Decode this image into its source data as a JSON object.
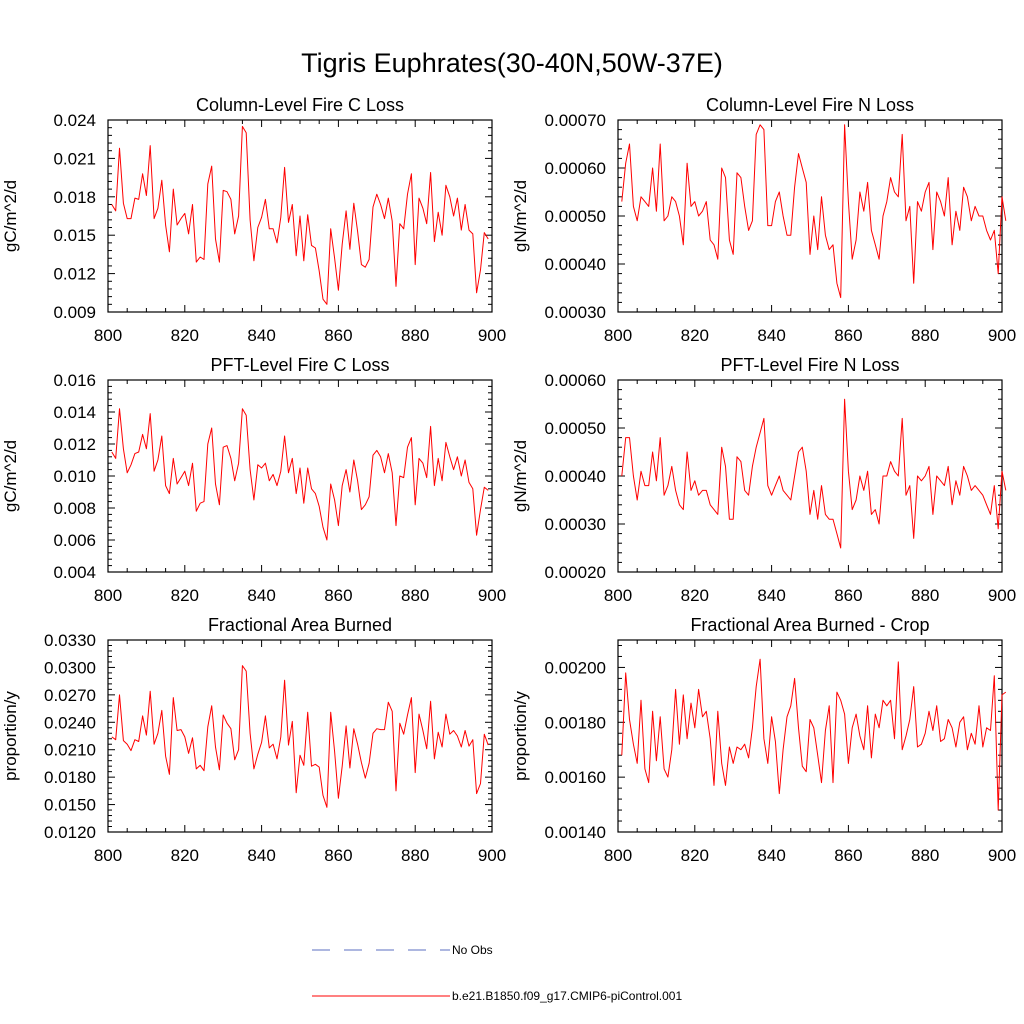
{
  "figure_title": "Tigris Euphrates(30-40N,50W-37E)",
  "legend": {
    "items": [
      {
        "label": "No Obs",
        "style": "dashed",
        "color": "#5b6fc2"
      },
      {
        "label": "b.e21.B1850.f09_g17.CMIP6-piControl.001",
        "style": "solid",
        "color": "#ff0000"
      }
    ]
  },
  "chart_data": [
    {
      "type": "line",
      "title": "Column-Level Fire C Loss",
      "ylabel": "gC/m^2/d",
      "xlabel": "",
      "xlim": [
        800,
        900
      ],
      "xticks": [
        800,
        820,
        840,
        860,
        880,
        900
      ],
      "ylim": [
        0.009,
        0.024
      ],
      "yticks": [
        "0.009",
        "0.012",
        "0.015",
        "0.018",
        "0.021",
        "0.024"
      ],
      "x_start": 801,
      "series": [
        {
          "name": "b.e21.B1850.f09_g17.CMIP6-piControl.001",
          "color": "#ff0000",
          "values": [
            0.0174,
            0.0169,
            0.0218,
            0.0175,
            0.0163,
            0.0163,
            0.0179,
            0.0178,
            0.0198,
            0.0181,
            0.022,
            0.0163,
            0.0171,
            0.0193,
            0.0158,
            0.0137,
            0.0186,
            0.0158,
            0.0163,
            0.0167,
            0.0151,
            0.0174,
            0.0129,
            0.0133,
            0.0131,
            0.019,
            0.0204,
            0.0147,
            0.0129,
            0.0185,
            0.0184,
            0.0178,
            0.0151,
            0.0165,
            0.0235,
            0.023,
            0.0162,
            0.013,
            0.0156,
            0.0164,
            0.0178,
            0.0155,
            0.0155,
            0.0144,
            0.0164,
            0.0203,
            0.016,
            0.0174,
            0.0134,
            0.0165,
            0.013,
            0.0166,
            0.0142,
            0.014,
            0.0122,
            0.01,
            0.0096,
            0.0155,
            0.0132,
            0.0107,
            0.0143,
            0.0169,
            0.0139,
            0.0175,
            0.0153,
            0.0127,
            0.0125,
            0.0131,
            0.0172,
            0.0182,
            0.0174,
            0.0163,
            0.0179,
            0.0161,
            0.011,
            0.0159,
            0.0155,
            0.0182,
            0.0198,
            0.0127,
            0.0179,
            0.0171,
            0.0159,
            0.0199,
            0.0145,
            0.0168,
            0.015,
            0.0189,
            0.018,
            0.0165,
            0.0179,
            0.0154,
            0.0174,
            0.0154,
            0.0151,
            0.0105,
            0.0123,
            0.0152,
            0.0147
          ]
        }
      ]
    },
    {
      "type": "line",
      "title": "Column-Level Fire N Loss",
      "ylabel": "gN/m^2/d",
      "xlabel": "",
      "xlim": [
        800,
        900
      ],
      "xticks": [
        800,
        820,
        840,
        860,
        880,
        900
      ],
      "ylim": [
        0.0003,
        0.0007
      ],
      "yticks": [
        "0.00030",
        "0.00040",
        "0.00050",
        "0.00060",
        "0.00070"
      ],
      "x_start": 801,
      "series": [
        {
          "name": "b.e21.B1850.f09_g17.CMIP6-piControl.001",
          "color": "#ff0000",
          "values": [
            0.00053,
            0.00061,
            0.00065,
            0.00052,
            0.00049,
            0.00054,
            0.00053,
            0.00052,
            0.0006,
            0.00051,
            0.00065,
            0.00049,
            0.0005,
            0.00054,
            0.00053,
            0.0005,
            0.00044,
            0.00061,
            0.00052,
            0.00053,
            0.0005,
            0.00051,
            0.00053,
            0.00045,
            0.00044,
            0.00041,
            0.0006,
            0.00058,
            0.00045,
            0.00042,
            0.00059,
            0.00058,
            0.00052,
            0.00047,
            0.00049,
            0.00067,
            0.00069,
            0.00068,
            0.00048,
            0.00048,
            0.00053,
            0.00055,
            0.0005,
            0.00046,
            0.00046,
            0.00056,
            0.00063,
            0.0006,
            0.00057,
            0.00042,
            0.0005,
            0.00043,
            0.00054,
            0.00046,
            0.00043,
            0.00044,
            0.00036,
            0.00033,
            0.00069,
            0.00053,
            0.00041,
            0.00045,
            0.00055,
            0.00051,
            0.00057,
            0.00047,
            0.00044,
            0.00041,
            0.0005,
            0.00053,
            0.00058,
            0.00055,
            0.00054,
            0.00067,
            0.00049,
            0.00052,
            0.00036,
            0.00053,
            0.00051,
            0.00055,
            0.00057,
            0.00043,
            0.00055,
            0.00053,
            0.0005,
            0.00058,
            0.00044,
            0.00051,
            0.00047,
            0.00056,
            0.00054,
            0.00049,
            0.00052,
            0.0005,
            0.0005,
            0.00047,
            0.00045,
            0.00047,
            0.00038,
            0.00054,
            0.00049
          ]
        }
      ]
    },
    {
      "type": "line",
      "title": "PFT-Level Fire C Loss",
      "ylabel": "gC/m^2/d",
      "xlabel": "",
      "xlim": [
        800,
        900
      ],
      "xticks": [
        800,
        820,
        840,
        860,
        880,
        900
      ],
      "ylim": [
        0.004,
        0.016
      ],
      "yticks": [
        "0.004",
        "0.006",
        "0.008",
        "0.010",
        "0.012",
        "0.014",
        "0.016"
      ],
      "x_start": 801,
      "series": [
        {
          "name": "b.e21.B1850.f09_g17.CMIP6-piControl.001",
          "color": "#ff0000",
          "values": [
            0.0115,
            0.0111,
            0.0142,
            0.0117,
            0.0102,
            0.0107,
            0.0114,
            0.0115,
            0.0126,
            0.0117,
            0.0139,
            0.0103,
            0.011,
            0.0125,
            0.0094,
            0.0089,
            0.0111,
            0.0095,
            0.0099,
            0.0103,
            0.0094,
            0.0108,
            0.0078,
            0.0083,
            0.0084,
            0.012,
            0.013,
            0.0095,
            0.0082,
            0.0118,
            0.0119,
            0.0111,
            0.0097,
            0.0108,
            0.0142,
            0.0138,
            0.0104,
            0.0085,
            0.0107,
            0.0105,
            0.0108,
            0.0097,
            0.0101,
            0.0094,
            0.0103,
            0.0125,
            0.0102,
            0.0111,
            0.0089,
            0.0105,
            0.0083,
            0.0105,
            0.0092,
            0.0089,
            0.0081,
            0.0068,
            0.006,
            0.0095,
            0.0085,
            0.0069,
            0.0094,
            0.0104,
            0.009,
            0.011,
            0.0097,
            0.0079,
            0.0082,
            0.0087,
            0.0113,
            0.0116,
            0.0112,
            0.0102,
            0.0114,
            0.0102,
            0.0069,
            0.01,
            0.0099,
            0.0118,
            0.0124,
            0.0082,
            0.0111,
            0.0108,
            0.0099,
            0.0131,
            0.0094,
            0.0111,
            0.0097,
            0.0121,
            0.0112,
            0.0104,
            0.0112,
            0.01,
            0.011,
            0.0096,
            0.0092,
            0.0063,
            0.0079,
            0.0093,
            0.0091
          ]
        }
      ]
    },
    {
      "type": "line",
      "title": "PFT-Level Fire N Loss",
      "ylabel": "gN/m^2/d",
      "xlabel": "",
      "xlim": [
        800,
        900
      ],
      "xticks": [
        800,
        820,
        840,
        860,
        880,
        900
      ],
      "ylim": [
        0.0002,
        0.0006
      ],
      "yticks": [
        "0.00020",
        "0.00030",
        "0.00040",
        "0.00050",
        "0.00060"
      ],
      "x_start": 801,
      "series": [
        {
          "name": "b.e21.B1850.f09_g17.CMIP6-piControl.001",
          "color": "#ff0000",
          "values": [
            0.0004,
            0.00048,
            0.00048,
            0.0004,
            0.00035,
            0.00041,
            0.00038,
            0.00038,
            0.00045,
            0.00039,
            0.00048,
            0.00036,
            0.00038,
            0.00042,
            0.00037,
            0.00034,
            0.00033,
            0.00045,
            0.00037,
            0.00039,
            0.00036,
            0.00037,
            0.00037,
            0.00034,
            0.00033,
            0.00032,
            0.00046,
            0.00042,
            0.00031,
            0.00031,
            0.00044,
            0.00043,
            0.00037,
            0.00036,
            0.00042,
            0.00046,
            0.00049,
            0.00052,
            0.00038,
            0.00036,
            0.00038,
            0.0004,
            0.00037,
            0.00036,
            0.00035,
            0.0004,
            0.00045,
            0.00046,
            0.00041,
            0.00032,
            0.00037,
            0.00031,
            0.00038,
            0.00032,
            0.00031,
            0.00031,
            0.00028,
            0.00025,
            0.00056,
            0.00041,
            0.00033,
            0.00035,
            0.0004,
            0.00037,
            0.00041,
            0.00032,
            0.00033,
            0.0003,
            0.0004,
            0.0004,
            0.00043,
            0.00041,
            0.0004,
            0.00052,
            0.00036,
            0.00038,
            0.00027,
            0.0004,
            0.00039,
            0.0004,
            0.00042,
            0.00032,
            0.0004,
            0.00039,
            0.00038,
            0.00042,
            0.00034,
            0.00039,
            0.00036,
            0.00042,
            0.0004,
            0.00037,
            0.00038,
            0.00037,
            0.00036,
            0.00034,
            0.00032,
            0.00038,
            0.00029,
            0.00041,
            0.00037
          ]
        }
      ]
    },
    {
      "type": "line",
      "title": "Fractional Area Burned",
      "ylabel": "proportion/y",
      "xlabel": "",
      "xlim": [
        800,
        900
      ],
      "xticks": [
        800,
        820,
        840,
        860,
        880,
        900
      ],
      "ylim": [
        0.012,
        0.033
      ],
      "yticks": [
        "0.0120",
        "0.0150",
        "0.0180",
        "0.0210",
        "0.0240",
        "0.0270",
        "0.0300",
        "0.0330"
      ],
      "x_start": 801,
      "series": [
        {
          "name": "b.e21.B1850.f09_g17.CMIP6-piControl.001",
          "color": "#ff0000",
          "values": [
            0.0224,
            0.0221,
            0.027,
            0.022,
            0.0216,
            0.0209,
            0.0221,
            0.0219,
            0.0247,
            0.0226,
            0.0274,
            0.0216,
            0.0228,
            0.0253,
            0.0203,
            0.0183,
            0.0267,
            0.0231,
            0.0232,
            0.0224,
            0.0206,
            0.0223,
            0.0189,
            0.0193,
            0.0187,
            0.0235,
            0.0258,
            0.0213,
            0.0188,
            0.0248,
            0.0239,
            0.0233,
            0.0199,
            0.021,
            0.0302,
            0.0296,
            0.0228,
            0.0189,
            0.0205,
            0.0218,
            0.0247,
            0.0212,
            0.0216,
            0.02,
            0.0224,
            0.0286,
            0.0215,
            0.0241,
            0.0163,
            0.0204,
            0.0193,
            0.0251,
            0.0192,
            0.0194,
            0.0191,
            0.016,
            0.0147,
            0.0251,
            0.0208,
            0.0157,
            0.0192,
            0.0236,
            0.019,
            0.0233,
            0.0216,
            0.0196,
            0.0179,
            0.0195,
            0.0228,
            0.0233,
            0.0232,
            0.0232,
            0.0262,
            0.0252,
            0.0165,
            0.0239,
            0.0227,
            0.0248,
            0.0267,
            0.0185,
            0.0249,
            0.0231,
            0.0211,
            0.0263,
            0.02,
            0.0229,
            0.0213,
            0.0249,
            0.0227,
            0.0231,
            0.0225,
            0.0213,
            0.0231,
            0.0214,
            0.0221,
            0.0162,
            0.0173,
            0.0227,
            0.0215
          ]
        }
      ]
    },
    {
      "type": "line",
      "title": "Fractional Area Burned - Crop",
      "ylabel": "proportion/y",
      "xlabel": "",
      "xlim": [
        800,
        900
      ],
      "xticks": [
        800,
        820,
        840,
        860,
        880,
        900
      ],
      "ylim": [
        0.0014,
        0.0021
      ],
      "yticks": [
        "0.00140",
        "0.00160",
        "0.00180",
        "0.00200"
      ],
      "x_start": 801,
      "series": [
        {
          "name": "b.e21.B1850.f09_g17.CMIP6-piControl.001",
          "color": "#ff0000",
          "values": [
            0.00168,
            0.00198,
            0.00181,
            0.00172,
            0.00165,
            0.00188,
            0.00163,
            0.00158,
            0.00184,
            0.00166,
            0.00182,
            0.00163,
            0.0016,
            0.0017,
            0.00192,
            0.00172,
            0.0019,
            0.00174,
            0.00187,
            0.00178,
            0.00192,
            0.00182,
            0.00184,
            0.00174,
            0.00157,
            0.00184,
            0.00165,
            0.00157,
            0.00171,
            0.00165,
            0.00171,
            0.0017,
            0.00172,
            0.00167,
            0.00178,
            0.00193,
            0.00203,
            0.00174,
            0.00165,
            0.00182,
            0.00173,
            0.00154,
            0.0017,
            0.00182,
            0.00186,
            0.00196,
            0.00178,
            0.00164,
            0.00162,
            0.00181,
            0.00178,
            0.00168,
            0.00158,
            0.00177,
            0.00186,
            0.00158,
            0.00191,
            0.00188,
            0.00183,
            0.00165,
            0.00178,
            0.00183,
            0.00175,
            0.0017,
            0.00186,
            0.00167,
            0.00183,
            0.00178,
            0.00188,
            0.00186,
            0.00188,
            0.00174,
            0.00202,
            0.0017,
            0.00175,
            0.00181,
            0.00193,
            0.00171,
            0.00172,
            0.00176,
            0.00184,
            0.00177,
            0.00186,
            0.00173,
            0.00174,
            0.00181,
            0.00178,
            0.00171,
            0.0018,
            0.00182,
            0.0017,
            0.00176,
            0.00172,
            0.00186,
            0.00171,
            0.00178,
            0.00177,
            0.00197,
            0.00148,
            0.0019,
            0.00191
          ]
        }
      ]
    }
  ]
}
